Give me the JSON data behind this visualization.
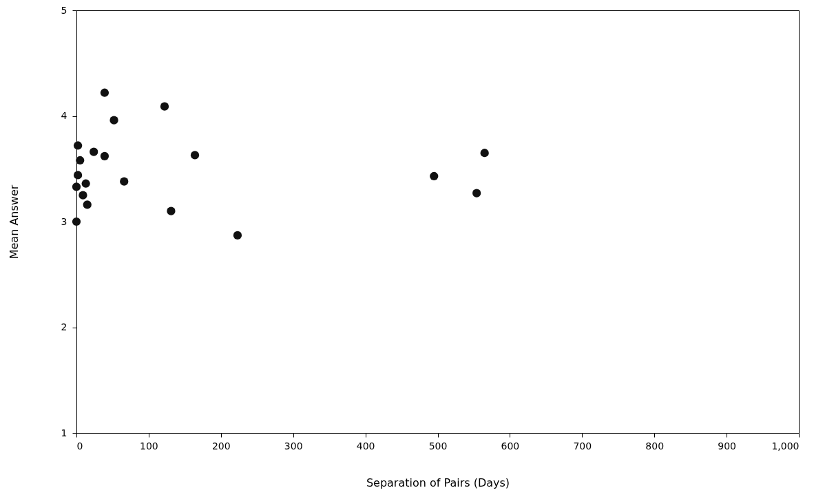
{
  "chart_data": {
    "type": "scatter",
    "xlabel": "Separation of Pairs (Days)",
    "ylabel": "Mean Answer",
    "x": [
      39,
      122,
      52,
      2,
      24,
      39,
      164,
      5,
      2,
      66,
      13,
      0,
      9,
      15,
      0,
      131,
      223,
      495,
      554,
      565
    ],
    "series": [
      {
        "color": "#111111",
        "values": [
          4.22,
          4.09,
          3.96,
          3.72,
          3.66,
          3.62,
          3.63,
          3.58,
          3.44,
          3.38,
          3.36,
          3.33,
          3.25,
          3.16,
          3.0,
          3.1,
          2.87,
          3.43,
          3.27,
          3.65
        ]
      }
    ],
    "xlim": [
      0,
      1000
    ],
    "xticks": [
      0,
      100,
      200,
      300,
      400,
      500,
      600,
      700,
      800,
      900,
      {
        "value": 1000,
        "label": "1,000"
      }
    ],
    "ylim": [
      1,
      5
    ],
    "yticks": [
      1,
      2,
      3,
      4,
      5
    ],
    "grid": false,
    "marker": "circle"
  }
}
